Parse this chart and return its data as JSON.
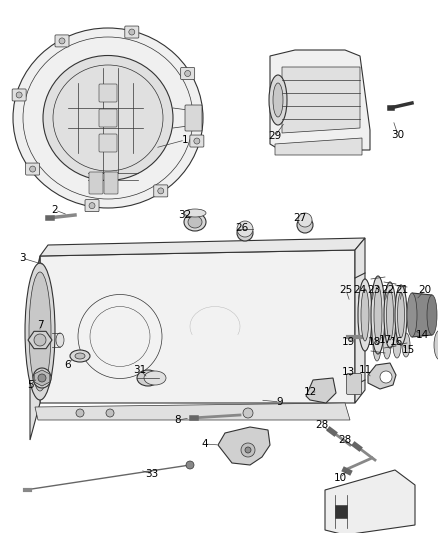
{
  "bg_color": "#ffffff",
  "line_color": "#333333",
  "label_color": "#000000",
  "fig_width": 4.38,
  "fig_height": 5.33,
  "dpi": 100
}
